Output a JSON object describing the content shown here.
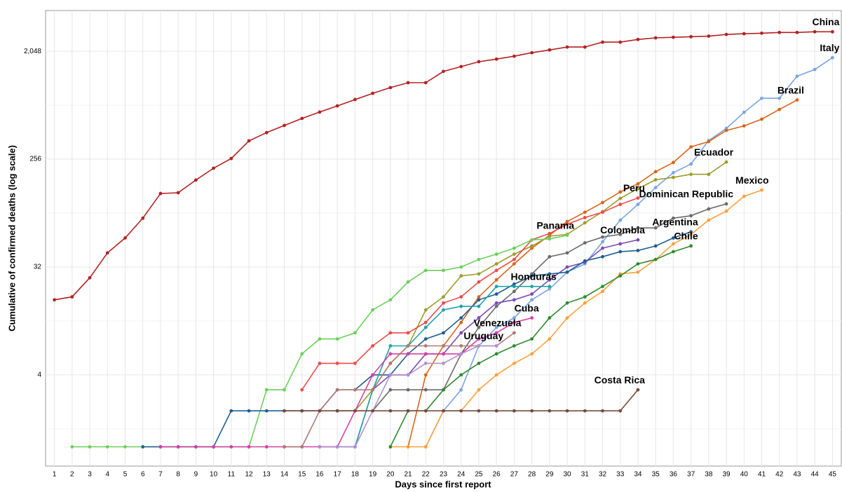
{
  "chart_data": {
    "type": "line",
    "x_label": "Days since first report",
    "y_label": "Cumulative of confirmed deaths (log scale)",
    "yscale": "log",
    "grid": true,
    "x": [
      1,
      2,
      3,
      4,
      5,
      6,
      7,
      8,
      9,
      10,
      11,
      12,
      13,
      14,
      15,
      16,
      17,
      18,
      19,
      20,
      21,
      22,
      23,
      24,
      25,
      26,
      27,
      28,
      29,
      30,
      31,
      32,
      33,
      34,
      35,
      36,
      37,
      38,
      39,
      40,
      41,
      42,
      43,
      44,
      45
    ],
    "xlim": [
      0.5,
      45.5
    ],
    "xticks": [
      1,
      2,
      3,
      4,
      5,
      6,
      7,
      8,
      9,
      10,
      11,
      12,
      13,
      14,
      15,
      16,
      17,
      18,
      19,
      20,
      21,
      22,
      23,
      24,
      25,
      26,
      27,
      28,
      29,
      30,
      31,
      32,
      33,
      34,
      35,
      36,
      37,
      38,
      39,
      40,
      41,
      42,
      43,
      44,
      45
    ],
    "ylim": [
      0.69,
      4490
    ],
    "yticks": [
      4,
      32,
      256,
      {
        "value": 2048,
        "label": "2,048"
      }
    ],
    "series": [
      {
        "name": "China",
        "color": "#b22222",
        "values": [
          17,
          18,
          26,
          42,
          56,
          82,
          132,
          134,
          171,
          215,
          259,
          364,
          427,
          490,
          561,
          634,
          714,
          807,
          910,
          1016,
          1117,
          1117,
          1389,
          1523,
          1673,
          1760,
          1860,
          1990,
          2100,
          2220,
          2220,
          2440,
          2440,
          2570,
          2650,
          2680,
          2710,
          2740,
          2830,
          2870,
          2900,
          2940,
          2940,
          2980,
          2980
        ]
      },
      {
        "name": "Italy",
        "color": "#79a6de",
        "values": [
          null,
          null,
          null,
          null,
          null,
          null,
          null,
          null,
          null,
          null,
          null,
          null,
          null,
          null,
          null,
          null,
          null,
          null,
          null,
          null,
          null,
          1,
          2,
          3,
          7,
          10,
          12,
          17,
          21,
          29,
          34,
          52,
          79,
          107,
          148,
          197,
          233,
          366,
          463,
          631,
          827,
          827,
          1266,
          1441,
          1809
        ]
      },
      {
        "name": "Brazil",
        "color": "#d9651a",
        "values": [
          null,
          null,
          null,
          null,
          null,
          null,
          null,
          null,
          null,
          null,
          null,
          null,
          null,
          null,
          null,
          null,
          null,
          null,
          null,
          null,
          1,
          4,
          7,
          11,
          18,
          25,
          34,
          46,
          59,
          77,
          92,
          111,
          136,
          159,
          201,
          240,
          324,
          359,
          445,
          486,
          553,
          667,
          800,
          null,
          null
        ]
      },
      {
        "name": "Ecuador",
        "color": "#9c9c2c",
        "values": [
          null,
          null,
          null,
          null,
          null,
          null,
          null,
          null,
          null,
          null,
          null,
          null,
          null,
          2,
          2,
          2,
          2,
          2,
          3,
          5,
          7,
          14,
          18,
          27,
          28,
          34,
          41,
          48,
          58,
          60,
          75,
          93,
          120,
          145,
          172,
          180,
          191,
          191,
          242,
          null,
          null,
          null,
          null,
          null,
          null
        ]
      },
      {
        "name": "Peru",
        "color": "#ee4a4a",
        "values": [
          null,
          null,
          null,
          null,
          null,
          null,
          null,
          null,
          null,
          null,
          null,
          null,
          null,
          null,
          3,
          5,
          5,
          5,
          7,
          9,
          9,
          11,
          16,
          18,
          24,
          30,
          37,
          54,
          61,
          73,
          83,
          92,
          107,
          121,
          null,
          null,
          null,
          null,
          null,
          null,
          null,
          null,
          null,
          null,
          null
        ]
      },
      {
        "name": "Mexico",
        "color": "#ffa03c",
        "values": [
          null,
          null,
          null,
          null,
          null,
          null,
          null,
          null,
          null,
          null,
          null,
          null,
          null,
          null,
          null,
          null,
          null,
          null,
          null,
          1,
          1,
          1,
          2,
          2,
          3,
          4,
          5,
          6,
          8,
          12,
          16,
          20,
          28,
          29,
          37,
          50,
          60,
          79,
          94,
          125,
          141,
          null,
          null,
          null,
          null
        ]
      },
      {
        "name": "Dominican Republic",
        "color": "#6b6b6b",
        "values": [
          null,
          null,
          null,
          null,
          null,
          null,
          null,
          null,
          null,
          null,
          null,
          null,
          null,
          null,
          null,
          null,
          2,
          2,
          2,
          3,
          3,
          3,
          3,
          6,
          10,
          15,
          20,
          28,
          39,
          42,
          51,
          57,
          60,
          68,
          68,
          82,
          86,
          98,
          108,
          null,
          null,
          null,
          null,
          null,
          null
        ]
      },
      {
        "name": "Panama",
        "color": "#6ccf5c",
        "values": [
          null,
          1,
          1,
          1,
          1,
          1,
          1,
          1,
          1,
          1,
          1,
          1,
          3,
          3,
          6,
          8,
          8,
          9,
          14,
          17,
          24,
          30,
          30,
          32,
          37,
          41,
          46,
          54,
          55,
          59,
          null,
          null,
          null,
          null,
          null,
          null,
          null,
          null,
          null,
          null,
          null,
          null,
          null,
          null,
          null
        ]
      },
      {
        "name": "Colombia",
        "color": "#7b4bb8",
        "values": [
          null,
          null,
          null,
          null,
          null,
          null,
          null,
          null,
          null,
          null,
          null,
          null,
          null,
          null,
          null,
          1,
          1,
          1,
          3,
          4,
          4,
          6,
          6,
          9,
          12,
          16,
          17,
          19,
          25,
          32,
          35,
          46,
          50,
          54,
          null,
          null,
          null,
          null,
          null,
          null,
          null,
          null,
          null,
          null,
          null
        ]
      },
      {
        "name": "Argentina",
        "color": "#1f5e92",
        "values": [
          null,
          null,
          null,
          null,
          null,
          1,
          1,
          1,
          1,
          1,
          2,
          2,
          2,
          2,
          2,
          2,
          3,
          3,
          4,
          4,
          6,
          8,
          9,
          12,
          17,
          19,
          23,
          27,
          28,
          29,
          36,
          39,
          43,
          44,
          48,
          56,
          63,
          null,
          null,
          null,
          null,
          null,
          null,
          null,
          null
        ]
      },
      {
        "name": "Chile",
        "color": "#2e8b2e",
        "values": [
          null,
          null,
          null,
          null,
          null,
          null,
          null,
          null,
          null,
          null,
          null,
          null,
          null,
          null,
          null,
          null,
          null,
          null,
          null,
          1,
          2,
          2,
          3,
          4,
          5,
          6,
          7,
          8,
          12,
          16,
          18,
          22,
          27,
          34,
          37,
          43,
          48,
          null,
          null,
          null,
          null,
          null,
          null,
          null,
          null
        ]
      },
      {
        "name": "Honduras",
        "color": "#1fa3a8",
        "values": [
          null,
          null,
          null,
          null,
          null,
          null,
          null,
          null,
          null,
          null,
          null,
          null,
          null,
          null,
          null,
          null,
          null,
          1,
          3,
          7,
          7,
          10,
          14,
          15,
          15,
          22,
          22,
          22,
          22,
          null,
          null,
          null,
          null,
          null,
          null,
          null,
          null,
          null,
          null,
          null,
          null,
          null,
          null,
          null,
          null
        ]
      },
      {
        "name": "Cuba",
        "color": "#d63fa8",
        "values": [
          null,
          null,
          null,
          null,
          null,
          null,
          1,
          1,
          1,
          1,
          1,
          1,
          1,
          1,
          1,
          1,
          1,
          2,
          4,
          6,
          6,
          6,
          6,
          6,
          8,
          9,
          11,
          12,
          null,
          null,
          null,
          null,
          null,
          null,
          null,
          null,
          null,
          null,
          null,
          null,
          null,
          null,
          null,
          null,
          null
        ]
      },
      {
        "name": "Venezuela",
        "color": "#b07a73",
        "values": [
          null,
          null,
          null,
          null,
          null,
          null,
          null,
          null,
          null,
          null,
          null,
          null,
          null,
          1,
          1,
          2,
          3,
          3,
          3,
          5,
          7,
          7,
          7,
          7,
          7,
          7,
          9,
          null,
          null,
          null,
          null,
          null,
          null,
          null,
          null,
          null,
          null,
          null,
          null,
          null,
          null,
          null,
          null,
          null,
          null
        ]
      },
      {
        "name": "Uruguay",
        "color": "#b38fd1",
        "values": [
          null,
          null,
          null,
          null,
          null,
          null,
          null,
          null,
          null,
          null,
          null,
          null,
          null,
          null,
          null,
          1,
          1,
          1,
          2,
          4,
          4,
          5,
          5,
          6,
          7,
          7,
          null,
          null,
          null,
          null,
          null,
          null,
          null,
          null,
          null,
          null,
          null,
          null,
          null,
          null,
          null,
          null,
          null,
          null,
          null
        ]
      },
      {
        "name": "Costa Rica",
        "color": "#7a4a3d",
        "values": [
          null,
          null,
          null,
          null,
          null,
          null,
          null,
          null,
          null,
          null,
          null,
          null,
          null,
          2,
          2,
          2,
          2,
          2,
          2,
          2,
          2,
          2,
          2,
          2,
          2,
          2,
          2,
          2,
          2,
          2,
          2,
          2,
          2,
          3,
          null,
          null,
          null,
          null,
          null,
          null,
          null,
          null,
          null,
          null,
          null
        ]
      }
    ]
  }
}
